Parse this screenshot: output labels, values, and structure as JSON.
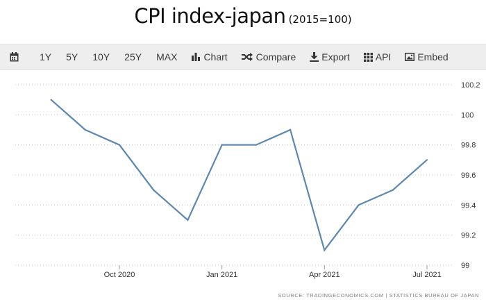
{
  "title": {
    "main": "CPI index-japan",
    "sub": "(2015=100)"
  },
  "toolbar": {
    "items": [
      {
        "label": "",
        "icon": "calendar-icon"
      },
      {
        "label": "1Y"
      },
      {
        "label": "5Y"
      },
      {
        "label": "10Y"
      },
      {
        "label": "25Y"
      },
      {
        "label": "MAX"
      },
      {
        "label": "Chart",
        "icon": "bar-chart-icon"
      },
      {
        "label": "Compare",
        "icon": "shuffle-icon"
      },
      {
        "label": "Export",
        "icon": "download-icon"
      },
      {
        "label": "API",
        "icon": "grid-icon"
      },
      {
        "label": "Embed",
        "icon": "image-icon"
      }
    ],
    "background": "#eeeeee"
  },
  "chart_data": {
    "type": "line",
    "title": "CPI index-japan",
    "subtitle": "(2015=100)",
    "x": [
      "2020-08-01",
      "2020-09-01",
      "2020-10-01",
      "2020-11-01",
      "2020-12-01",
      "2021-01-01",
      "2021-02-01",
      "2021-03-01",
      "2021-04-01",
      "2021-05-01",
      "2021-06-01",
      "2021-07-01"
    ],
    "series": [
      {
        "values": [
          100.1,
          99.9,
          99.8,
          99.5,
          99.3,
          99.8,
          99.8,
          99.9,
          99.1,
          99.4,
          99.5,
          99.7
        ],
        "color": "#5b87b0"
      }
    ],
    "x_ticks": [
      {
        "label": "Oct 2020",
        "at": "2020-10-01"
      },
      {
        "label": "Jan 2021",
        "at": "2021-01-01"
      },
      {
        "label": "Apr 2021",
        "at": "2021-04-01"
      },
      {
        "label": "Jul 2021",
        "at": "2021-07-01"
      }
    ],
    "y_ticks": [
      "99",
      "99.2",
      "99.4",
      "99.6",
      "99.8",
      "100",
      "100.2"
    ],
    "ylim": [
      99,
      100.2
    ],
    "xlabel": "",
    "ylabel": "",
    "grid": "horizontal dotted",
    "y_axis_side": "right",
    "source": "SOURCE: TRADINGECONOMICS.COM | STATISTICS BUREAU OF JAPAN"
  }
}
